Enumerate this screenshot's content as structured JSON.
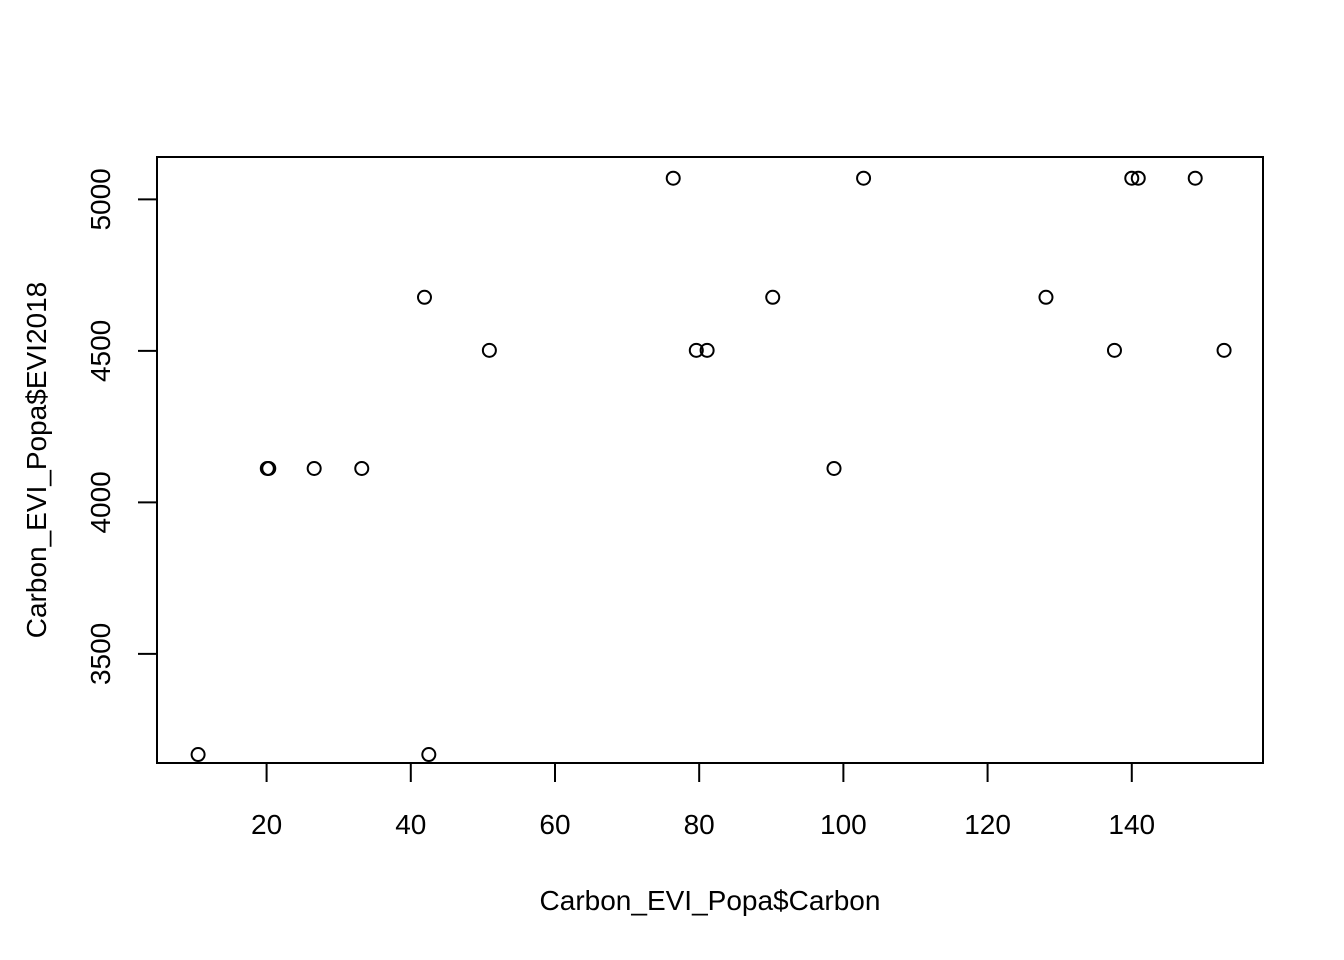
{
  "chart_data": {
    "type": "scatter",
    "xlabel": "Carbon_EVI_Popa$Carbon",
    "ylabel": "Carbon_EVI_Popa$EVI2018",
    "xlim": [
      4.8,
      158.2
    ],
    "ylim": [
      3140,
      5140
    ],
    "xticks": [
      20,
      40,
      60,
      80,
      100,
      120,
      140
    ],
    "yticks": [
      3500,
      4000,
      4500,
      5000
    ],
    "grid": false,
    "legend": "none",
    "marker": "open-circle",
    "points": [
      {
        "x": 10.5,
        "y": 3168
      },
      {
        "x": 20.1,
        "y": 4112
      },
      {
        "x": 20.3,
        "y": 4112
      },
      {
        "x": 26.6,
        "y": 4112
      },
      {
        "x": 33.2,
        "y": 4112
      },
      {
        "x": 41.9,
        "y": 4677
      },
      {
        "x": 42.5,
        "y": 3168
      },
      {
        "x": 50.9,
        "y": 4502
      },
      {
        "x": 76.4,
        "y": 5070
      },
      {
        "x": 79.6,
        "y": 4502
      },
      {
        "x": 81.1,
        "y": 4502
      },
      {
        "x": 90.2,
        "y": 4677
      },
      {
        "x": 98.7,
        "y": 4112
      },
      {
        "x": 102.8,
        "y": 5070
      },
      {
        "x": 128.1,
        "y": 4677
      },
      {
        "x": 137.6,
        "y": 4502
      },
      {
        "x": 140.0,
        "y": 5070
      },
      {
        "x": 140.9,
        "y": 5070
      },
      {
        "x": 148.8,
        "y": 5070
      },
      {
        "x": 152.8,
        "y": 4502
      }
    ]
  }
}
